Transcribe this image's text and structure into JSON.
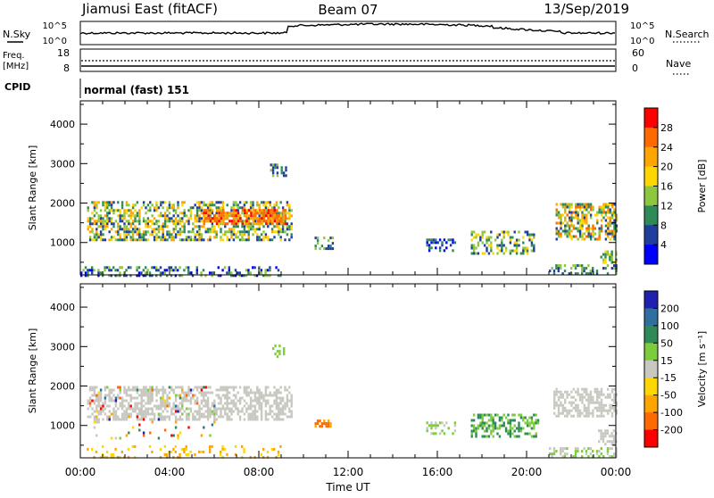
{
  "header": {
    "station": "Jiamusi East (fitACF)",
    "beam": "Beam 07",
    "date": "13/Sep/2019"
  },
  "noise_panel": {
    "left_label": "N.Sky",
    "right_label": "N.Search",
    "left_ticks": [
      "10^5",
      "10^0"
    ],
    "right_ticks": [
      "10^5",
      "10^0"
    ]
  },
  "freq_panel": {
    "left_label_1": "Freq.",
    "left_label_2": "[MHz]",
    "left_ticks": [
      "18",
      "8"
    ],
    "right_ticks": [
      "60",
      "0"
    ],
    "right_label": "Nave"
  },
  "cpid": {
    "label": "CPID",
    "value": "normal (fast) 151"
  },
  "chart_data": [
    {
      "type": "heatmap",
      "name": "power",
      "ylabel": "Slant Range [km]",
      "ylim": [
        180,
        4590
      ],
      "yticks": [
        "4000",
        "3000",
        "2000",
        "1000"
      ],
      "xlabel": "Time UT",
      "xticks": [
        "00:00",
        "04:00",
        "08:00",
        "12:00",
        "16:00",
        "20:00",
        "00:00"
      ],
      "xlim_hours": [
        0,
        24
      ],
      "colorbar": {
        "label": "Power [dB]",
        "ticks": [
          "28",
          "24",
          "20",
          "16",
          "12",
          "8",
          "4"
        ],
        "colors": [
          "#ff0000",
          "#ff6a00",
          "#ffa500",
          "#ffd700",
          "#8dc63f",
          "#2e8b57",
          "#1f3f9f",
          "#0000ff"
        ]
      },
      "regions": [
        {
          "t0": 0.3,
          "t1": 9.5,
          "r0": 1100,
          "r1": 2050,
          "c": [
            2,
            6
          ],
          "d": 0.55
        },
        {
          "t0": 5.5,
          "t1": 9.2,
          "r0": 1450,
          "r1": 1850,
          "c": [
            0,
            2
          ],
          "d": 0.7
        },
        {
          "t0": 8.5,
          "t1": 9.2,
          "r0": 2700,
          "r1": 3000,
          "c": [
            4,
            6
          ],
          "d": 0.5
        },
        {
          "t0": 10.5,
          "t1": 11.3,
          "r0": 850,
          "r1": 1150,
          "c": [
            4,
            6
          ],
          "d": 0.4
        },
        {
          "t0": 15.5,
          "t1": 16.8,
          "r0": 800,
          "r1": 1100,
          "c": [
            5,
            7
          ],
          "d": 0.35
        },
        {
          "t0": 17.5,
          "t1": 20.3,
          "r0": 750,
          "r1": 1300,
          "c": [
            3,
            6
          ],
          "d": 0.45
        },
        {
          "t0": 21.3,
          "t1": 24.0,
          "r0": 1100,
          "r1": 2000,
          "c": [
            1,
            6
          ],
          "d": 0.6
        },
        {
          "t0": 0.0,
          "t1": 9.0,
          "r0": 180,
          "r1": 400,
          "c": [
            4,
            7
          ],
          "d": 0.4
        },
        {
          "t0": 21.0,
          "t1": 24.0,
          "r0": 180,
          "r1": 450,
          "c": [
            4,
            6
          ],
          "d": 0.4
        },
        {
          "t0": 23.3,
          "t1": 24.0,
          "r0": 500,
          "r1": 800,
          "c": [
            3,
            5
          ],
          "d": 0.6
        }
      ]
    },
    {
      "type": "heatmap",
      "name": "velocity",
      "ylabel": "Slant Range [km]",
      "ylim": [
        180,
        4590
      ],
      "yticks": [
        "4000",
        "3000",
        "2000",
        "1000"
      ],
      "xlabel": "Time UT",
      "xticks": [
        "00:00",
        "04:00",
        "08:00",
        "12:00",
        "16:00",
        "20:00",
        "00:00"
      ],
      "xlim_hours": [
        0,
        24
      ],
      "colorbar": {
        "label": "Velocity [m s⁻¹]",
        "ticks": [
          "200",
          "100",
          "50",
          "15",
          "-15",
          "-50",
          "-100",
          "-200"
        ],
        "colors": [
          "#2020b0",
          "#2f6f9f",
          "#2e8b57",
          "#7ccd3c",
          "#c8c8c0",
          "#ffd700",
          "#ffa500",
          "#ff6a00",
          "#ff0000"
        ]
      },
      "regions": [
        {
          "t0": 0.3,
          "t1": 9.5,
          "r0": 1150,
          "r1": 2000,
          "c": [
            4,
            4
          ],
          "d": 0.55
        },
        {
          "t0": 0.3,
          "t1": 6.0,
          "r0": 700,
          "r1": 2000,
          "c": [
            0,
            8
          ],
          "d": 0.08
        },
        {
          "t0": 8.6,
          "t1": 9.1,
          "r0": 2750,
          "r1": 3050,
          "c": [
            3,
            3
          ],
          "d": 0.5
        },
        {
          "t0": 10.5,
          "t1": 11.2,
          "r0": 950,
          "r1": 1150,
          "c": [
            6,
            7
          ],
          "d": 0.6
        },
        {
          "t0": 15.5,
          "t1": 16.8,
          "r0": 800,
          "r1": 1100,
          "c": [
            3,
            4
          ],
          "d": 0.35
        },
        {
          "t0": 17.5,
          "t1": 20.5,
          "r0": 750,
          "r1": 1300,
          "c": [
            2,
            3
          ],
          "d": 0.45
        },
        {
          "t0": 21.2,
          "t1": 24.0,
          "r0": 1250,
          "r1": 1950,
          "c": [
            4,
            4
          ],
          "d": 0.6
        },
        {
          "t0": 0.0,
          "t1": 9.0,
          "r0": 180,
          "r1": 500,
          "c": [
            5,
            6
          ],
          "d": 0.2
        },
        {
          "t0": 21.0,
          "t1": 24.0,
          "r0": 180,
          "r1": 450,
          "c": [
            3,
            4
          ],
          "d": 0.35
        },
        {
          "t0": 23.2,
          "t1": 24.0,
          "r0": 500,
          "r1": 900,
          "c": [
            4,
            4
          ],
          "d": 0.6
        }
      ]
    }
  ]
}
